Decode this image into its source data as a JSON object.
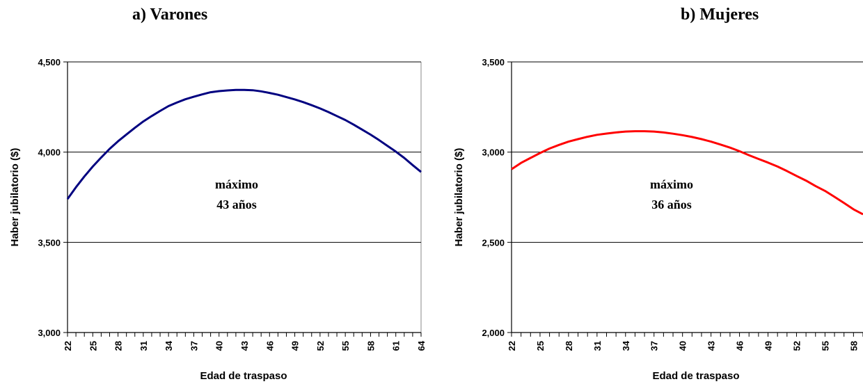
{
  "chart_data": [
    {
      "type": "line",
      "title": "a) Varones",
      "xlabel": "Edad de traspaso",
      "ylabel": "Haber jubilatorio ($)",
      "ylim": [
        3000,
        4500
      ],
      "xlim": [
        22,
        64
      ],
      "yticks": [
        "3,000",
        "3,500",
        "4,000",
        "4,500"
      ],
      "ytick_values": [
        3000,
        3500,
        4000,
        4500
      ],
      "xticks": [
        "22",
        "25",
        "28",
        "31",
        "34",
        "37",
        "40",
        "43",
        "46",
        "49",
        "52",
        "55",
        "58",
        "61",
        "64"
      ],
      "xtick_values": [
        22,
        25,
        28,
        31,
        34,
        37,
        40,
        43,
        46,
        49,
        52,
        55,
        58,
        61,
        64
      ],
      "grid": "horizontal",
      "annotation": [
        "máximo",
        "43 años"
      ],
      "series": [
        {
          "color": "#000080",
          "x": [
            22,
            23,
            24,
            25,
            26,
            27,
            28,
            29,
            30,
            31,
            32,
            33,
            34,
            35,
            36,
            37,
            38,
            39,
            40,
            41,
            42,
            43,
            44,
            45,
            46,
            47,
            48,
            49,
            50,
            51,
            52,
            53,
            54,
            55,
            56,
            57,
            58,
            59,
            60,
            61,
            62,
            63,
            64
          ],
          "values": [
            3740,
            3805,
            3865,
            3920,
            3970,
            4018,
            4060,
            4098,
            4135,
            4170,
            4200,
            4228,
            4255,
            4275,
            4293,
            4307,
            4320,
            4332,
            4338,
            4342,
            4345,
            4345,
            4343,
            4337,
            4328,
            4318,
            4305,
            4292,
            4277,
            4260,
            4242,
            4222,
            4200,
            4178,
            4152,
            4125,
            4097,
            4067,
            4035,
            4003,
            3968,
            3928,
            3890
          ]
        }
      ]
    },
    {
      "type": "line",
      "title": "b) Mujeres",
      "xlabel": "Edad de traspaso",
      "ylabel": "Haber jubilatorio ($)",
      "ylim": [
        2000,
        3500
      ],
      "xlim": [
        22,
        59
      ],
      "yticks": [
        "2,000",
        "2,500",
        "3,000",
        "3,500"
      ],
      "ytick_values": [
        2000,
        2500,
        3000,
        3500
      ],
      "xticks": [
        "22",
        "25",
        "28",
        "31",
        "34",
        "37",
        "40",
        "43",
        "46",
        "49",
        "52",
        "55",
        "58"
      ],
      "xtick_values": [
        22,
        25,
        28,
        31,
        34,
        37,
        40,
        43,
        46,
        49,
        52,
        55,
        58
      ],
      "grid": "horizontal",
      "annotation": [
        "máximo",
        "36 años"
      ],
      "series": [
        {
          "color": "#ff0000",
          "x": [
            22,
            23,
            24,
            25,
            26,
            27,
            28,
            29,
            30,
            31,
            32,
            33,
            34,
            35,
            36,
            37,
            38,
            39,
            40,
            41,
            42,
            43,
            44,
            45,
            46,
            47,
            48,
            49,
            50,
            51,
            52,
            53,
            54,
            55,
            56,
            57,
            58,
            59
          ],
          "values": [
            2905,
            2940,
            2968,
            2995,
            3020,
            3040,
            3058,
            3072,
            3085,
            3096,
            3103,
            3109,
            3114,
            3116,
            3116,
            3114,
            3109,
            3102,
            3094,
            3084,
            3072,
            3058,
            3042,
            3025,
            3005,
            2983,
            2962,
            2942,
            2920,
            2895,
            2868,
            2842,
            2812,
            2785,
            2752,
            2718,
            2683,
            2655
          ]
        }
      ]
    }
  ]
}
